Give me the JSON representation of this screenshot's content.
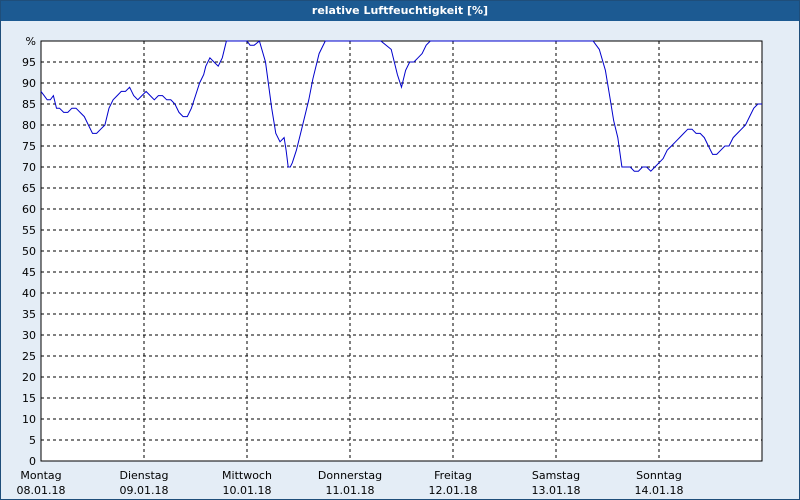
{
  "title": "relative Luftfeuchtigkeit [%]",
  "chart_data": {
    "type": "line",
    "title": "relative Luftfeuchtigkeit [%]",
    "ylabel": "%",
    "ylim": [
      0,
      100
    ],
    "yticks": [
      0,
      5,
      10,
      15,
      20,
      25,
      30,
      35,
      40,
      45,
      50,
      55,
      60,
      65,
      70,
      75,
      80,
      85,
      90,
      95
    ],
    "grid": true,
    "x_unit": "days from Montag 08.01.18 00:00",
    "day_labels": [
      {
        "day": "Montag",
        "date": "08.01.18"
      },
      {
        "day": "Dienstag",
        "date": "09.01.18"
      },
      {
        "day": "Mittwoch",
        "date": "10.01.18"
      },
      {
        "day": "Donnerstag",
        "date": "11.01.18"
      },
      {
        "day": "Freitag",
        "date": "12.01.18"
      },
      {
        "day": "Samstag",
        "date": "13.01.18"
      },
      {
        "day": "Sonntag",
        "date": "14.01.18"
      }
    ],
    "series": [
      {
        "color": "#0000cc",
        "x": [
          0,
          0.03,
          0.06,
          0.09,
          0.12,
          0.15,
          0.18,
          0.22,
          0.26,
          0.3,
          0.34,
          0.38,
          0.42,
          0.46,
          0.5,
          0.54,
          0.58,
          0.62,
          0.66,
          0.7,
          0.74,
          0.78,
          0.82,
          0.86,
          0.9,
          0.94,
          0.98,
          1.02,
          1.06,
          1.1,
          1.14,
          1.18,
          1.22,
          1.26,
          1.3,
          1.34,
          1.38,
          1.42,
          1.46,
          1.5,
          1.54,
          1.58,
          1.6,
          1.64,
          1.68,
          1.72,
          1.76,
          1.8,
          1.84,
          1.88,
          1.92,
          1.96,
          2.0,
          2.03,
          2.07,
          2.12,
          2.18,
          2.24,
          2.28,
          2.32,
          2.36,
          2.38,
          2.4,
          2.42,
          2.44,
          2.48,
          2.52,
          2.56,
          2.6,
          2.64,
          2.7,
          2.76,
          2.82,
          2.9,
          2.98,
          3.05,
          3.1,
          3.2,
          3.3,
          3.4,
          3.46,
          3.5,
          3.54,
          3.58,
          3.62,
          3.66,
          3.7,
          3.74,
          3.78,
          3.82,
          3.86,
          3.9,
          3.94,
          3.98,
          4.05,
          4.2,
          4.4,
          4.6,
          4.8,
          5.0,
          5.1,
          5.2,
          5.25,
          5.3,
          5.36,
          5.42,
          5.48,
          5.52,
          5.56,
          5.6,
          5.64,
          5.68,
          5.72,
          5.76,
          5.8,
          5.84,
          5.88,
          5.92,
          5.96,
          6.0,
          6.04,
          6.08,
          6.12,
          6.16,
          6.2,
          6.24,
          6.28,
          6.32,
          6.36,
          6.4,
          6.44,
          6.48,
          6.52,
          6.56,
          6.6,
          6.64,
          6.68,
          6.72,
          6.76,
          6.8,
          6.84,
          6.88,
          6.92,
          6.96,
          7.0
        ],
        "y": [
          88,
          87,
          86,
          86,
          87,
          84,
          84,
          83,
          83,
          84,
          84,
          83,
          82,
          80,
          78,
          78,
          79,
          80,
          84,
          86,
          87,
          88,
          88,
          89,
          87,
          86,
          87,
          88,
          87,
          86,
          87,
          87,
          86,
          86,
          85,
          83,
          82,
          82,
          84,
          87,
          90,
          92,
          94,
          96,
          95,
          94,
          96,
          100,
          100,
          100,
          100,
          100,
          100,
          99,
          99,
          100,
          95,
          84,
          78,
          76,
          77,
          74,
          70,
          70,
          71,
          74,
          78,
          82,
          86,
          91,
          97,
          100,
          100,
          100,
          100,
          100,
          100,
          100,
          100,
          98,
          92,
          89,
          93,
          95,
          95,
          96,
          97,
          99,
          100,
          100,
          100,
          100,
          100,
          100,
          100,
          100,
          100,
          100,
          100,
          100,
          100,
          100,
          100,
          100,
          100,
          98,
          93,
          87,
          81,
          77,
          70,
          70,
          70,
          69,
          69,
          70,
          70,
          69,
          70,
          71,
          72,
          74,
          75,
          76,
          77,
          78,
          79,
          79,
          78,
          78,
          77,
          75,
          73,
          73,
          74,
          75,
          75,
          77,
          78,
          79,
          80,
          82,
          84,
          85,
          85
        ]
      }
    ]
  }
}
